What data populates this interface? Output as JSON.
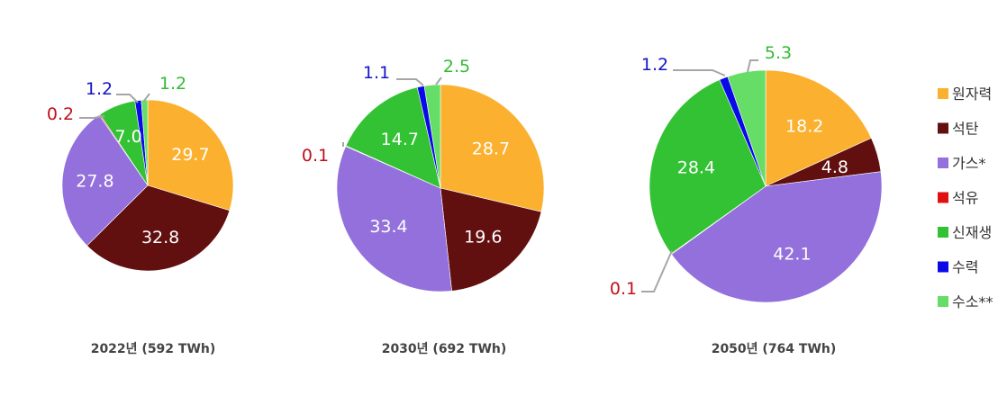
{
  "colors": {
    "원자력": "#FBB12F",
    "석탄": "#620F10",
    "가스*": "#9370DB",
    "석유": "#E01010",
    "신재생": "#33C233",
    "수력": "#0A0AE8",
    "수소**": "#66DD66"
  },
  "legend": [
    "원자력",
    "석탄",
    "가스*",
    "석유",
    "신재생",
    "수력",
    "수소**"
  ],
  "chart_data": [
    {
      "type": "pie",
      "title": "2022년 (592 TWh)",
      "categories": [
        "원자력",
        "석탄",
        "가스*",
        "석유",
        "신재생",
        "수력",
        "수소**"
      ],
      "values": [
        29.7,
        32.8,
        27.8,
        0.2,
        7.0,
        1.2,
        1.2
      ],
      "labels": [
        "29.7",
        "32.8",
        "27.8",
        "0.2",
        "7.0",
        "1.2",
        "1.2"
      ]
    },
    {
      "type": "pie",
      "title": "2030년 (692 TWh)",
      "categories": [
        "원자력",
        "석탄",
        "가스*",
        "석유",
        "신재생",
        "수력",
        "수소**"
      ],
      "values": [
        28.7,
        19.6,
        33.4,
        0.1,
        14.7,
        1.1,
        2.5
      ],
      "labels": [
        "28.7",
        "19.6",
        "33.4",
        "0.1",
        "14.7",
        "1.1",
        "2.5"
      ]
    },
    {
      "type": "pie",
      "title": "2050년 (764 TWh)",
      "categories": [
        "원자력",
        "석탄",
        "가스*",
        "석유",
        "신재생",
        "수력",
        "수소**"
      ],
      "values": [
        18.2,
        4.8,
        42.1,
        0.1,
        28.4,
        1.2,
        5.3
      ],
      "labels": [
        "18.2",
        "4.8",
        "42.1",
        "0.1",
        "28.4",
        "1.2",
        "5.3"
      ]
    }
  ]
}
